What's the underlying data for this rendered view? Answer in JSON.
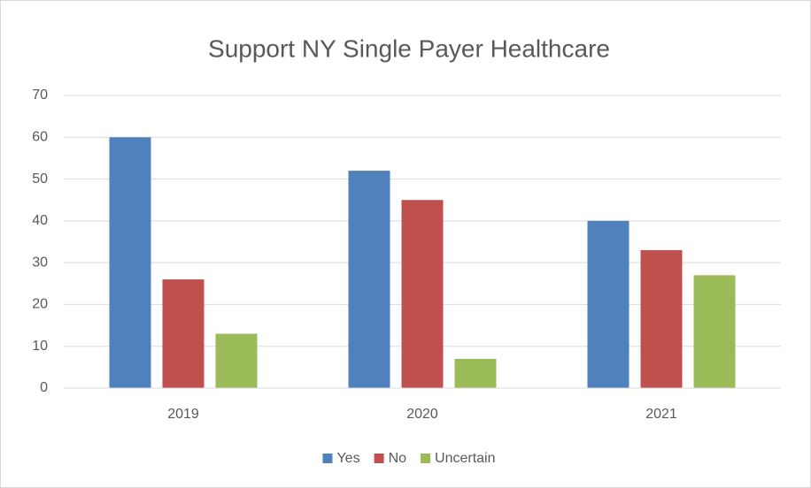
{
  "chart_data": {
    "type": "bar",
    "title": "Support NY Single Payer Healthcare",
    "categories": [
      "2019",
      "2020",
      "2021"
    ],
    "series": [
      {
        "name": "Yes",
        "color": "#4f81bd",
        "values": [
          60,
          52,
          40
        ]
      },
      {
        "name": "No",
        "color": "#c0504d",
        "values": [
          26,
          45,
          33
        ]
      },
      {
        "name": "Uncertain",
        "color": "#9bbb59",
        "values": [
          13,
          7,
          27
        ]
      }
    ],
    "ylim": [
      0,
      70
    ],
    "yticks": [
      0,
      10,
      20,
      30,
      40,
      50,
      60,
      70
    ],
    "grid": true,
    "legend": "bottom"
  }
}
